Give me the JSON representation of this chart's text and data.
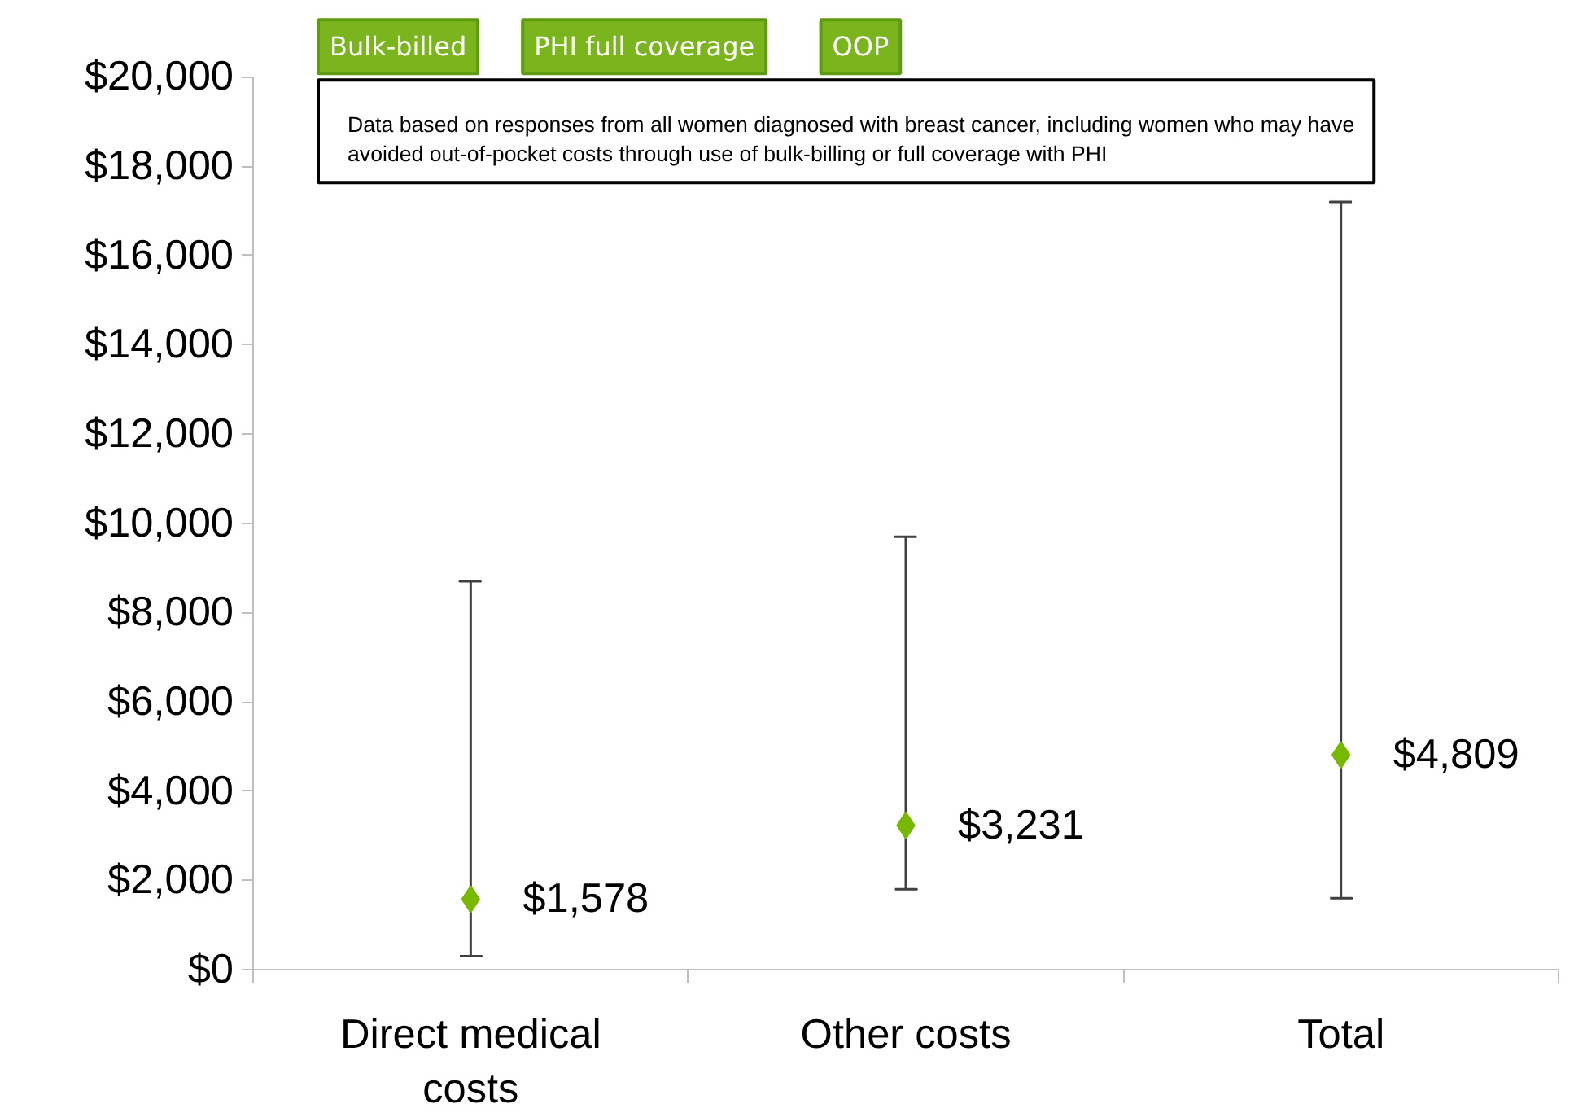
{
  "chart_data": {
    "type": "scatter",
    "categories": [
      "Direct medical costs",
      "Other costs",
      "Total"
    ],
    "values": [
      1578,
      3231,
      4809
    ],
    "errors": [
      [
        300,
        8700
      ],
      [
        1800,
        9700
      ],
      [
        1600,
        17200
      ]
    ],
    "value_labels": [
      "$1,578",
      "$3,231",
      "$4,809"
    ],
    "color": "#77b800",
    "marker": "diamond",
    "grid": false,
    "ylim": [
      0,
      20000
    ],
    "yticks": [
      {
        "value": 0,
        "label": "$0"
      },
      {
        "value": 2000,
        "label": "$2,000"
      },
      {
        "value": 4000,
        "label": "$4,000"
      },
      {
        "value": 6000,
        "label": "$6,000"
      },
      {
        "value": 8000,
        "label": "$8,000"
      },
      {
        "value": 10000,
        "label": "$10,000"
      },
      {
        "value": 12000,
        "label": "$12,000"
      },
      {
        "value": 14000,
        "label": "$14,000"
      },
      {
        "value": 16000,
        "label": "$16,000"
      },
      {
        "value": 18000,
        "label": "$18,000"
      },
      {
        "value": 20000,
        "label": "$20,000"
      }
    ],
    "annotations": [
      "Bulk-billed",
      "PHI full coverage",
      "OOP",
      "Data based on responses from all women diagnosed with breast cancer, including women who may have avoided out-of-pocket costs through use of bulk-billing or full coverage with PHI"
    ]
  }
}
